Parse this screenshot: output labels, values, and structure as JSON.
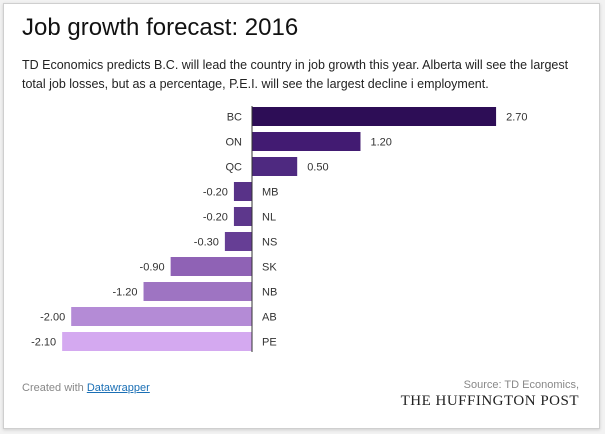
{
  "title": "Job growth forecast: 2016",
  "subtitle": "TD Economics predicts B.C. will lead the country in job growth this year. Alberta will see the largest total job losses, but as a percentage, P.E.I. will see the largest decline i employment.",
  "footer": {
    "created_prefix": "Created with ",
    "created_link": "Datawrapper",
    "source": "Source: TD Economics,",
    "publisher": "THE HUFFINGTON POST"
  },
  "chart_data": {
    "type": "bar",
    "orientation": "horizontal",
    "title": "Job growth forecast: 2016",
    "categories": [
      "BC",
      "ON",
      "QC",
      "MB",
      "NL",
      "NS",
      "SK",
      "NB",
      "AB",
      "PE"
    ],
    "values": [
      2.7,
      1.2,
      0.5,
      -0.2,
      -0.2,
      -0.3,
      -0.9,
      -1.2,
      -2.0,
      -2.1
    ],
    "value_labels": [
      "2.70",
      "1.20",
      "0.50",
      "-0.20",
      "-0.20",
      "-0.30",
      "-0.90",
      "-1.20",
      "-2.00",
      "-2.10"
    ],
    "colors": [
      "#2d0d56",
      "#421b72",
      "#4e2980",
      "#583288",
      "#5d378c",
      "#663e95",
      "#8f62b5",
      "#9e74c2",
      "#b48bd6",
      "#d4a9f0"
    ],
    "xlim": [
      -2.1,
      2.7
    ],
    "grid": false,
    "legend": "none"
  }
}
